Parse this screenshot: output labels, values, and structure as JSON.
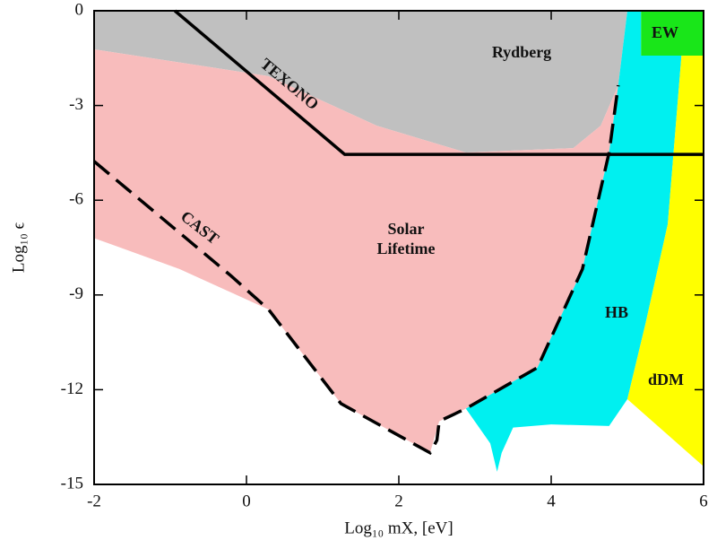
{
  "chart_data": {
    "type": "area",
    "xlabel": "Log₁₀ mX, [eV]",
    "ylabel": "Log₁₀ ϵ",
    "xlim": [
      -2,
      6
    ],
    "ylim": [
      -15,
      0
    ],
    "xticks": [
      -2,
      0,
      2,
      4,
      6
    ],
    "yticks": [
      0,
      -3,
      -6,
      -9,
      -12,
      -15
    ],
    "series": [
      {
        "name": "Rydberg",
        "kind": "fill",
        "color": "#c0c0c0",
        "x": [
          -2,
          5.0,
          4.88,
          4.65,
          4.29,
          2.88,
          1.71,
          0.29,
          -2
        ],
        "values": [
          0,
          0,
          -2.36,
          -3.64,
          -4.35,
          -4.49,
          -3.64,
          -2.07,
          -1.22
        ]
      },
      {
        "name": "Solar Lifetime",
        "kind": "fill",
        "color": "#f8bcbc",
        "x": [
          -2,
          0.29,
          1.71,
          2.88,
          4.29,
          4.65,
          4.88,
          4.76,
          4.41,
          3.82,
          2.88,
          2.53,
          2.41,
          1.24,
          0.29,
          -0.88,
          -2
        ],
        "values": [
          -1.22,
          -2.07,
          -3.64,
          -4.49,
          -4.35,
          -3.64,
          -2.36,
          -4.49,
          -8.18,
          -11.3,
          -12.6,
          -13.0,
          -14.0,
          -12.44,
          -9.46,
          -8.18,
          -7.2
        ]
      },
      {
        "name": "HB",
        "kind": "fill",
        "color": "#00f0f0",
        "x": [
          5.0,
          5.18,
          5.18,
          5.71,
          5.53,
          5.24,
          5.0,
          4.76,
          4.0,
          3.5,
          3.35,
          3.29,
          3.2,
          2.88,
          3.82,
          4.41,
          4.76,
          4.88
        ],
        "values": [
          0,
          0,
          -1.42,
          -1.42,
          -6.76,
          -9.89,
          -12.3,
          -13.15,
          -13.1,
          -13.2,
          -14.0,
          -14.6,
          -13.7,
          -12.6,
          -11.3,
          -8.18,
          -4.49,
          -2.36
        ]
      },
      {
        "name": "EW",
        "kind": "fill",
        "color": "#19e619",
        "x": [
          5.18,
          6,
          6,
          5.18
        ],
        "values": [
          0,
          0,
          -1.42,
          -1.42
        ]
      },
      {
        "name": "dDM",
        "kind": "fill",
        "color": "#ffff00",
        "x": [
          5.71,
          6,
          6,
          5.0,
          5.24,
          5.53
        ],
        "values": [
          -1.42,
          -1.42,
          -14.43,
          -12.3,
          -9.89,
          -6.76
        ]
      },
      {
        "name": "TEXONO",
        "kind": "line",
        "color": "#000000",
        "x": [
          -0.94,
          1.29,
          6
        ],
        "values": [
          0,
          -4.55,
          -4.55
        ]
      },
      {
        "name": "CAST",
        "kind": "dashed",
        "color": "#000000",
        "x": [
          -2,
          -0.2,
          0.29,
          1.24,
          2.41,
          2.5,
          2.53,
          2.88,
          3.82,
          4.41,
          4.76,
          4.88
        ],
        "values": [
          -4.77,
          -8.4,
          -9.46,
          -12.44,
          -14.0,
          -13.6,
          -13.0,
          -12.6,
          -11.3,
          -8.18,
          -4.49,
          -2.36
        ]
      }
    ]
  }
}
